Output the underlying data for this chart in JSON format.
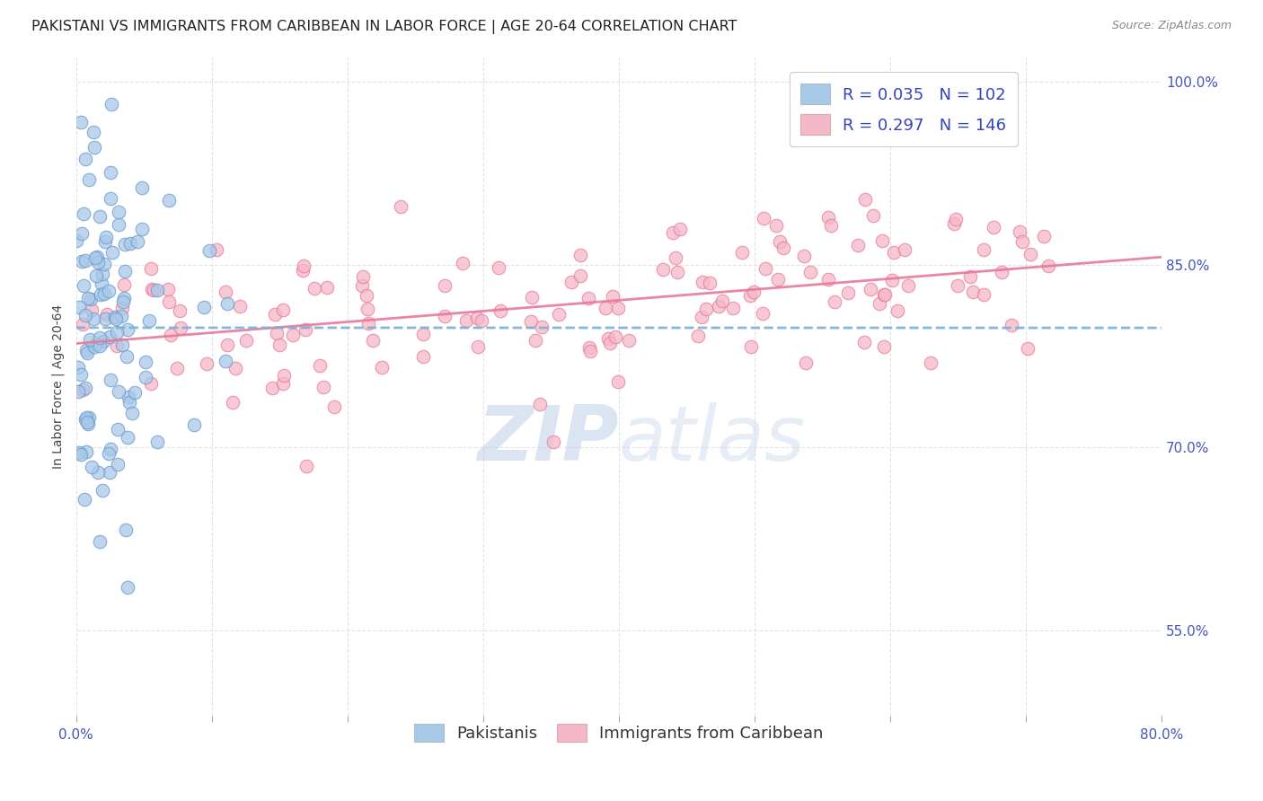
{
  "title": "PAKISTANI VS IMMIGRANTS FROM CARIBBEAN IN LABOR FORCE | AGE 20-64 CORRELATION CHART",
  "source": "Source: ZipAtlas.com",
  "ylabel": "In Labor Force | Age 20-64",
  "xlim": [
    0.0,
    0.8
  ],
  "ylim": [
    0.48,
    1.02
  ],
  "yticks": [
    0.55,
    0.7,
    0.85,
    1.0
  ],
  "ytick_labels": [
    "55.0%",
    "70.0%",
    "85.0%",
    "100.0%"
  ],
  "xtick_positions": [
    0.0,
    0.1,
    0.2,
    0.3,
    0.4,
    0.5,
    0.6,
    0.7,
    0.8
  ],
  "blue_R": 0.035,
  "blue_N": 102,
  "pink_R": 0.297,
  "pink_N": 146,
  "blue_color": "#a8c8e8",
  "pink_color": "#f4b8c8",
  "blue_edge_color": "#6699cc",
  "pink_edge_color": "#e87898",
  "blue_trend_color": "#7ab0d8",
  "pink_trend_color": "#e8789a",
  "legend_label_blue": "Pakistanis",
  "legend_label_pink": "Immigrants from Caribbean",
  "watermark_zip": "ZIP",
  "watermark_atlas": "atlas",
  "background_color": "#ffffff",
  "grid_color": "#e0e0e0",
  "title_color": "#222222",
  "source_color": "#888888",
  "tick_color": "#4455bb",
  "ylabel_color": "#444444",
  "legend_text_color_RN": "#3344bb",
  "legend_text_color_label": "#333333",
  "title_fontsize": 11.5,
  "axis_label_fontsize": 10,
  "tick_fontsize": 11,
  "legend_fontsize": 13,
  "source_fontsize": 9,
  "blue_seed": 12,
  "pink_seed": 99
}
